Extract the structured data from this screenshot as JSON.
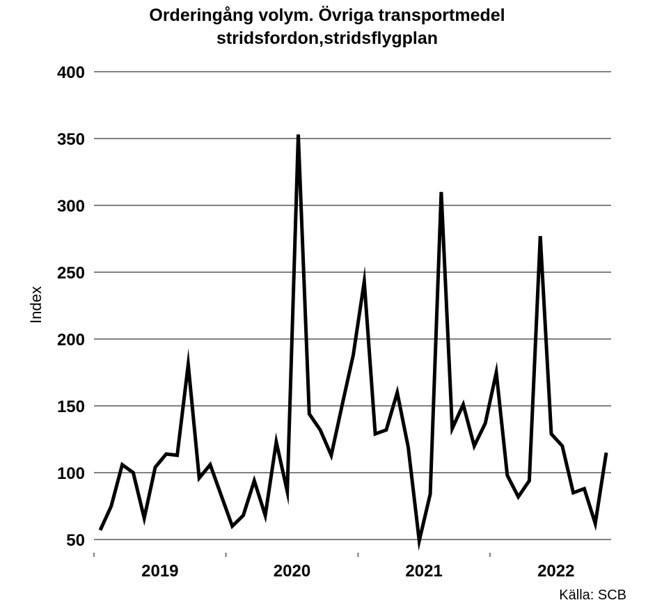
{
  "chart_data": {
    "type": "line",
    "title_line1": "Orderingång volym. Övriga transportmedel",
    "title_line2": "stridsfordon,stridsflygplan",
    "ylabel": "Index",
    "xlabel": "",
    "source": "Källa: SCB",
    "ylim": [
      50,
      400
    ],
    "yticks": [
      50,
      100,
      150,
      200,
      250,
      300,
      350,
      400
    ],
    "grid": true,
    "year_labels": [
      "2019",
      "2020",
      "2021",
      "2022"
    ],
    "series": [
      {
        "values": [
          57,
          75,
          106,
          100,
          66,
          104,
          114,
          113,
          181,
          96,
          106,
          83,
          60,
          68,
          94,
          68,
          123,
          86,
          353,
          144,
          132,
          113,
          151,
          188,
          243,
          129,
          132,
          160,
          119,
          49,
          84,
          310,
          133,
          151,
          120,
          137,
          175,
          98,
          82,
          94,
          277,
          129,
          120,
          85,
          88,
          62,
          115
        ]
      }
    ]
  }
}
